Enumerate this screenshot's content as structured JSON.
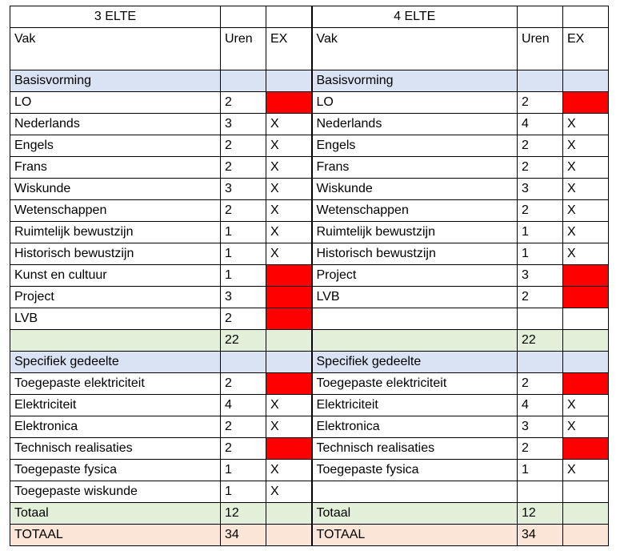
{
  "colors": {
    "section": "#dae3f3",
    "subtotal": "#e2f0d9",
    "total": "#fbe5d6",
    "not_examined": "#ff0000"
  },
  "titles": {
    "left": "3 ELTE",
    "right": "4 ELTE"
  },
  "headers": {
    "vak": "Vak",
    "uren": "Uren",
    "ex": "EX"
  },
  "rows": [
    {
      "style": "blue",
      "l": [
        "Basisvorming",
        "",
        ""
      ],
      "r": [
        "Basisvorming",
        "",
        ""
      ]
    },
    {
      "l": [
        "LO",
        "2",
        "red"
      ],
      "r": [
        "LO",
        "2",
        "red"
      ]
    },
    {
      "l": [
        "Nederlands",
        "3",
        "X"
      ],
      "r": [
        "Nederlands",
        "4",
        "X"
      ]
    },
    {
      "l": [
        "Engels",
        "2",
        "X"
      ],
      "r": [
        "Engels",
        "2",
        "X"
      ]
    },
    {
      "l": [
        "Frans",
        "2",
        "X"
      ],
      "r": [
        "Frans",
        "2",
        "X"
      ]
    },
    {
      "l": [
        "Wiskunde",
        "3",
        "X"
      ],
      "r": [
        "Wiskunde",
        "3",
        "X"
      ]
    },
    {
      "l": [
        "Wetenschappen",
        "2",
        "X"
      ],
      "r": [
        "Wetenschappen",
        "2",
        "X"
      ]
    },
    {
      "l": [
        "Ruimtelijk bewustzijn",
        "1",
        "X"
      ],
      "r": [
        "Ruimtelijk bewustzijn",
        "1",
        "X"
      ]
    },
    {
      "l": [
        "Historisch bewustzijn",
        "1",
        "X"
      ],
      "r": [
        "Historisch bewustzijn",
        "1",
        "X"
      ]
    },
    {
      "l": [
        "Kunst en cultuur",
        "1",
        "red"
      ],
      "r": [
        "Project",
        "3",
        "red"
      ]
    },
    {
      "l": [
        "Project",
        "3",
        "red"
      ],
      "r": [
        "LVB",
        "2",
        "red"
      ]
    },
    {
      "l": [
        "LVB",
        "2",
        "red"
      ],
      "r": [
        "",
        "",
        ""
      ]
    },
    {
      "style": "green",
      "l": [
        "",
        "22",
        ""
      ],
      "r": [
        "",
        "22",
        ""
      ]
    },
    {
      "style": "blue",
      "l": [
        "Specifiek gedeelte",
        "",
        ""
      ],
      "r": [
        "Specifiek gedeelte",
        "",
        ""
      ]
    },
    {
      "l": [
        "Toegepaste elektriciteit",
        "2",
        "red"
      ],
      "r": [
        "Toegepaste elektriciteit",
        "2",
        "red"
      ]
    },
    {
      "l": [
        "Elektriciteit",
        "4",
        "X"
      ],
      "r": [
        "Elektriciteit",
        "4",
        "X"
      ]
    },
    {
      "l": [
        "Elektronica",
        "2",
        "X"
      ],
      "r": [
        "Elektronica",
        "3",
        "X"
      ]
    },
    {
      "l": [
        "Technisch realisaties",
        "2",
        "red"
      ],
      "r": [
        "Technisch realisaties",
        "2",
        "red"
      ]
    },
    {
      "l": [
        "Toegepaste fysica",
        "1",
        "X"
      ],
      "r": [
        "Toegepaste fysica",
        "1",
        "X"
      ]
    },
    {
      "l": [
        "Toegepaste wiskunde",
        "1",
        "X"
      ],
      "r": [
        "",
        "",
        ""
      ]
    },
    {
      "style": "green",
      "l": [
        "Totaal",
        "12",
        ""
      ],
      "r": [
        "Totaal",
        "12",
        ""
      ]
    },
    {
      "style": "peach",
      "l": [
        "TOTAAL",
        "34",
        ""
      ],
      "r": [
        "TOTAAL",
        "34",
        ""
      ]
    }
  ]
}
